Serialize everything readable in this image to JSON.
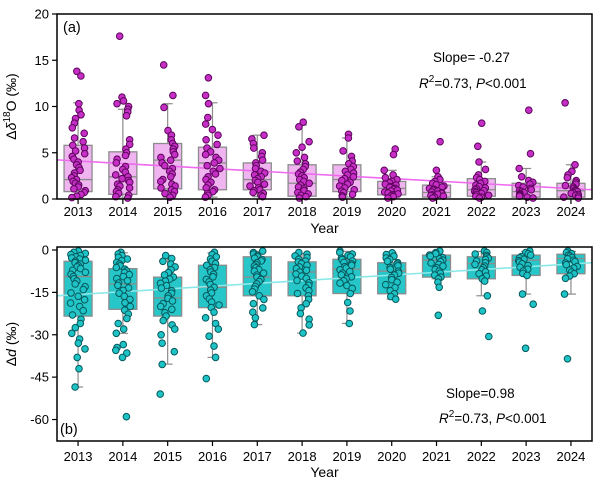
{
  "figure": {
    "background": "#ffffff",
    "frame_color": "#000000"
  },
  "chart_data": [
    {
      "type": "boxplot-scatter",
      "panel_label": "(a)",
      "xlabel": "Year",
      "ylabel_text": "Δδ¹⁸O (‰)",
      "ylabel_parts": [
        [
          "Δ",
          "n"
        ],
        [
          "δ",
          "i"
        ],
        [
          "18",
          "sup"
        ],
        [
          "O (‰)",
          "n"
        ]
      ],
      "xlim": [
        2012.53,
        2024.47
      ],
      "ylim": [
        0,
        20
      ],
      "yticks": [
        [
          0,
          "0"
        ],
        [
          5,
          "5"
        ],
        [
          10,
          "10"
        ],
        [
          15,
          "15"
        ],
        [
          20,
          "20"
        ]
      ],
      "categories": [
        2013,
        2014,
        2015,
        2016,
        2017,
        2018,
        2019,
        2020,
        2021,
        2022,
        2023,
        2024
      ],
      "boxes": [
        {
          "q1": 0.8,
          "median": 2.1,
          "q3": 5.8,
          "wlo": 0.15,
          "whi": 10.4
        },
        {
          "q1": 0.5,
          "median": 2.4,
          "q3": 5.1,
          "wlo": 0.1,
          "whi": 9.7
        },
        {
          "q1": 1.1,
          "median": 4.2,
          "q3": 6.0,
          "wlo": 0.2,
          "whi": 10.3
        },
        {
          "q1": 1.0,
          "median": 3.9,
          "q3": 5.6,
          "wlo": 0.2,
          "whi": 10.4
        },
        {
          "q1": 1.0,
          "median": 2.1,
          "q3": 3.9,
          "wlo": 0.25,
          "whi": 6.9
        },
        {
          "q1": 0.3,
          "median": 1.7,
          "q3": 3.7,
          "wlo": 0.1,
          "whi": 8.0
        },
        {
          "q1": 0.8,
          "median": 2.1,
          "q3": 3.7,
          "wlo": 0.2,
          "whi": 6.6
        },
        {
          "q1": 0.45,
          "median": 1.15,
          "q3": 1.9,
          "wlo": 0.1,
          "whi": 3.1
        },
        {
          "q1": 0.2,
          "median": 0.7,
          "q3": 1.5,
          "wlo": 0.1,
          "whi": 2.4
        },
        {
          "q1": 0.3,
          "median": 1.0,
          "q3": 2.2,
          "wlo": 0.1,
          "whi": 4.0
        },
        {
          "q1": 0.2,
          "median": 0.8,
          "q3": 1.7,
          "wlo": 0.1,
          "whi": 3.3
        },
        {
          "q1": 0.2,
          "median": 0.9,
          "q3": 1.7,
          "wlo": 0.1,
          "whi": 3.7
        }
      ],
      "points": [
        [
          13.8,
          13.3,
          10.3,
          9.6,
          9.1,
          8.7,
          8.2,
          7.7,
          7.1,
          6.6,
          6.2,
          5.8,
          5.5,
          5.2,
          4.9,
          4.6,
          4.3,
          4.0,
          3.7,
          3.4,
          3.1,
          2.8,
          2.5,
          2.3,
          2.1,
          1.9,
          1.7,
          1.5,
          1.3,
          1.1,
          0.9,
          0.7,
          0.5,
          0.3,
          0.15
        ],
        [
          17.6,
          11.0,
          10.6,
          10.3,
          10.0,
          9.7,
          9.4,
          9.0,
          6.4,
          5.9,
          5.4,
          5.0,
          4.7,
          4.3,
          3.9,
          3.5,
          3.2,
          2.9,
          2.6,
          2.4,
          2.2,
          2.0,
          1.8,
          1.6,
          1.4,
          1.2,
          1.0,
          0.8,
          0.6,
          0.4,
          0.25,
          0.1
        ],
        [
          14.5,
          11.2,
          9.9,
          7.4,
          6.9,
          6.4,
          6.0,
          5.7,
          5.4,
          5.1,
          4.8,
          4.5,
          4.2,
          3.9,
          3.6,
          3.3,
          3.0,
          2.7,
          2.4,
          2.1,
          1.9,
          1.6,
          1.4,
          1.2,
          1.0,
          0.8,
          0.6,
          0.4,
          0.2
        ],
        [
          13.1,
          11.2,
          10.3,
          8.8,
          8.1,
          7.5,
          6.9,
          6.4,
          5.9,
          5.5,
          5.1,
          4.8,
          4.5,
          4.2,
          3.9,
          3.6,
          3.3,
          3.0,
          2.7,
          2.4,
          2.1,
          1.8,
          1.5,
          1.2,
          1.0,
          0.8,
          0.6,
          0.4,
          0.2
        ],
        [
          6.9,
          6.5,
          6.0,
          5.5,
          5.0,
          4.6,
          4.2,
          3.9,
          3.6,
          3.3,
          3.0,
          2.8,
          2.6,
          2.4,
          2.2,
          2.0,
          1.8,
          1.6,
          1.4,
          1.2,
          1.0,
          0.9,
          0.7,
          0.6,
          0.4,
          0.25
        ],
        [
          8.3,
          7.8,
          6.2,
          5.6,
          5.0,
          4.5,
          4.1,
          3.8,
          3.5,
          3.2,
          2.9,
          2.7,
          2.5,
          2.3,
          2.1,
          1.9,
          1.7,
          1.5,
          1.3,
          1.1,
          0.9,
          0.7,
          0.55,
          0.4,
          0.25,
          0.1
        ],
        [
          7.0,
          6.6,
          5.2,
          4.6,
          4.1,
          3.8,
          3.5,
          3.2,
          3.0,
          2.8,
          2.6,
          2.4,
          2.2,
          2.0,
          1.8,
          1.6,
          1.4,
          1.2,
          1.0,
          0.85,
          0.7,
          0.5,
          0.35,
          0.2
        ],
        [
          5.4,
          4.8,
          3.1,
          2.6,
          2.3,
          2.1,
          1.9,
          1.75,
          1.6,
          1.5,
          1.35,
          1.25,
          1.15,
          1.05,
          0.95,
          0.85,
          0.75,
          0.65,
          0.55,
          0.45,
          0.35,
          0.25,
          0.1
        ],
        [
          6.2,
          3.1,
          2.4,
          2.1,
          1.9,
          1.7,
          1.55,
          1.4,
          1.3,
          1.15,
          1.05,
          0.95,
          0.85,
          0.75,
          0.68,
          0.6,
          0.52,
          0.45,
          0.38,
          0.3,
          0.2,
          0.1
        ],
        [
          8.2,
          5.7,
          4.0,
          3.2,
          2.6,
          2.3,
          2.1,
          1.9,
          1.7,
          1.5,
          1.35,
          1.2,
          1.1,
          1.0,
          0.9,
          0.8,
          0.7,
          0.6,
          0.5,
          0.4,
          0.3,
          0.2,
          0.1
        ],
        [
          9.6,
          4.9,
          3.3,
          2.4,
          2.0,
          1.8,
          1.6,
          1.45,
          1.3,
          1.15,
          1.0,
          0.9,
          0.8,
          0.7,
          0.6,
          0.5,
          0.4,
          0.3,
          0.2,
          0.1
        ],
        [
          10.4,
          3.7,
          3.0,
          2.6,
          2.3,
          2.0,
          1.8,
          1.6,
          1.45,
          1.3,
          1.15,
          1.0,
          0.9,
          0.8,
          0.7,
          0.6,
          0.5,
          0.4,
          0.3,
          0.2,
          0.1
        ]
      ],
      "trend": {
        "slope": -0.27,
        "edge_values": [
          4.23,
          1.0
        ]
      },
      "annotation": {
        "line1": "Slope= -0.27",
        "line2_text": "R²=0.73, P<0.001",
        "line2_parts": [
          [
            "R",
            "i"
          ],
          [
            "2",
            "sup"
          ],
          [
            "=0.73, ",
            "n"
          ],
          [
            "P",
            "i"
          ],
          [
            "<0.001",
            "n"
          ]
        ]
      },
      "colors": {
        "point_fill": "#c62fc6",
        "point_stroke": "#5c055c",
        "box_fill": "#f0b4f0",
        "box_stroke": "#8c8c8c",
        "trend": "#ee6aee"
      }
    },
    {
      "type": "boxplot-scatter",
      "panel_label": "(b)",
      "xlabel": "Year",
      "ylabel_text": "Δd (‰)",
      "ylabel_parts": [
        [
          "Δ",
          "n"
        ],
        [
          "d",
          "i"
        ],
        [
          " (‰)",
          "n"
        ]
      ],
      "xlim": [
        2012.53,
        2024.47
      ],
      "ylim": [
        -67.6,
        1.06
      ],
      "yticks": [
        [
          0,
          "0"
        ],
        [
          -15,
          "-15"
        ],
        [
          -30,
          "-30"
        ],
        [
          -45,
          "-45"
        ],
        [
          -60,
          "-60"
        ]
      ],
      "categories": [
        2013,
        2014,
        2015,
        2016,
        2017,
        2018,
        2019,
        2020,
        2021,
        2022,
        2023,
        2024
      ],
      "boxes": [
        {
          "q1": -23.4,
          "median": -9.4,
          "q3": -4.0,
          "wlo": -48.5,
          "whi": -0.5
        },
        {
          "q1": -21.0,
          "median": -12.0,
          "q3": -6.6,
          "wlo": -29.5,
          "whi": -1.0
        },
        {
          "q1": -23.4,
          "median": -17.0,
          "q3": -9.6,
          "wlo": -40.4,
          "whi": -2.0
        },
        {
          "q1": -20.4,
          "median": -13.2,
          "q3": -5.4,
          "wlo": -38.0,
          "whi": -1.0
        },
        {
          "q1": -16.2,
          "median": -9.6,
          "q3": -2.4,
          "wlo": -26.4,
          "whi": -0.5
        },
        {
          "q1": -16.2,
          "median": -7.8,
          "q3": -4.2,
          "wlo": -29.4,
          "whi": -1.2
        },
        {
          "q1": -15.4,
          "median": -6.8,
          "q3": -3.3,
          "wlo": -26.0,
          "whi": -0.5
        },
        {
          "q1": -15.5,
          "median": -7.5,
          "q3": -4.5,
          "wlo": -17.4,
          "whi": -1.0
        },
        {
          "q1": -9.6,
          "median": -3.6,
          "q3": -1.8,
          "wlo": -10.2,
          "whi": -0.5
        },
        {
          "q1": -10.2,
          "median": -4.8,
          "q3": -2.4,
          "wlo": -16.2,
          "whi": -0.5
        },
        {
          "q1": -9.0,
          "median": -3.6,
          "q3": -1.8,
          "wlo": -15.6,
          "whi": -0.5
        },
        {
          "q1": -8.4,
          "median": -3.0,
          "q3": -1.5,
          "wlo": -15.6,
          "whi": -0.5
        }
      ],
      "points": [
        [
          -0.4,
          -0.8,
          -1.2,
          -1.6,
          -2.0,
          -2.4,
          -2.8,
          -3.2,
          -3.6,
          -4.0,
          -4.5,
          -5.0,
          -5.5,
          -6.0,
          -6.6,
          -7.2,
          -7.9,
          -8.6,
          -9.4,
          -10.2,
          -11.0,
          -12.0,
          -13.0,
          -14.0,
          -15.2,
          -16.4,
          -17.6,
          -18.8,
          -20.0,
          -21.5,
          -23.0,
          -24.5,
          -26.0,
          -27.5,
          -29.5,
          -31.5,
          -33.0,
          -35.0,
          -38.0,
          -42.0,
          -48.5
        ],
        [
          -0.8,
          -1.4,
          -2.0,
          -2.6,
          -3.2,
          -3.8,
          -4.4,
          -5.0,
          -5.6,
          -6.2,
          -6.8,
          -7.4,
          -8.0,
          -8.7,
          -9.4,
          -10.1,
          -10.9,
          -11.7,
          -12.5,
          -13.4,
          -14.3,
          -15.3,
          -16.4,
          -17.5,
          -18.7,
          -20.0,
          -21.3,
          -22.7,
          -24.2,
          -26.0,
          -28.0,
          -29.5,
          -33.5,
          -34.5,
          -35.5,
          -36.5,
          -38.0,
          -59.0
        ],
        [
          -2.0,
          -3.0,
          -4.0,
          -5.0,
          -6.0,
          -7.0,
          -8.0,
          -8.8,
          -9.6,
          -10.3,
          -11.0,
          -11.8,
          -12.6,
          -13.5,
          -14.4,
          -15.3,
          -16.2,
          -17.1,
          -18.0,
          -19.0,
          -20.0,
          -21.0,
          -22.2,
          -23.4,
          -25.0,
          -26.5,
          -28.0,
          -30.0,
          -33.0,
          -36.0,
          -40.5,
          -51.0
        ],
        [
          -0.8,
          -1.6,
          -2.4,
          -3.2,
          -4.0,
          -4.8,
          -5.4,
          -6.2,
          -7.0,
          -7.8,
          -8.6,
          -9.5,
          -10.4,
          -11.3,
          -12.2,
          -13.2,
          -14.2,
          -15.2,
          -16.2,
          -17.3,
          -18.4,
          -19.5,
          -20.4,
          -22.0,
          -24.0,
          -26.0,
          -28.0,
          -30.5,
          -34.0,
          -38.0,
          -45.5
        ],
        [
          -0.4,
          -0.9,
          -1.4,
          -1.9,
          -2.4,
          -2.9,
          -3.4,
          -3.9,
          -4.5,
          -5.1,
          -5.7,
          -6.3,
          -6.9,
          -7.5,
          -8.2,
          -8.9,
          -9.6,
          -10.4,
          -11.2,
          -12.0,
          -12.9,
          -13.8,
          -14.8,
          -16.2,
          -17.5,
          -19.0,
          -20.5,
          -22.0,
          -24.0,
          -26.4
        ],
        [
          -0.9,
          -1.5,
          -2.1,
          -2.7,
          -3.3,
          -3.9,
          -4.2,
          -4.8,
          -5.4,
          -6.0,
          -6.6,
          -7.2,
          -7.8,
          -8.5,
          -9.2,
          -10.0,
          -10.8,
          -11.6,
          -12.5,
          -13.4,
          -14.4,
          -15.4,
          -16.2,
          -17.5,
          -19.0,
          -20.5,
          -22.5,
          -24.5,
          -26.5,
          -29.4
        ],
        [
          -0.4,
          -0.9,
          -1.4,
          -1.9,
          -2.4,
          -2.9,
          -3.4,
          -3.9,
          -4.4,
          -4.9,
          -5.4,
          -5.9,
          -6.4,
          -7.0,
          -7.6,
          -8.2,
          -8.8,
          -9.5,
          -10.2,
          -10.9,
          -11.7,
          -12.6,
          -13.6,
          -15.4,
          -18.6,
          -21.6,
          -26.0
        ],
        [
          -1.0,
          -1.6,
          -2.2,
          -2.8,
          -3.4,
          -4.0,
          -4.5,
          -5.0,
          -5.6,
          -6.2,
          -6.8,
          -7.5,
          -8.2,
          -8.9,
          -9.7,
          -10.5,
          -11.4,
          -12.3,
          -13.3,
          -14.4,
          -15.5,
          -16.5,
          -17.4
        ],
        [
          -0.4,
          -0.9,
          -1.3,
          -1.8,
          -2.2,
          -2.7,
          -3.1,
          -3.6,
          -4.1,
          -4.6,
          -5.1,
          -5.7,
          -6.3,
          -6.9,
          -7.5,
          -8.2,
          -8.9,
          -9.6,
          -10.2,
          -11.4,
          -13.2,
          -23.1
        ],
        [
          -0.4,
          -0.9,
          -1.4,
          -1.9,
          -2.4,
          -2.9,
          -3.4,
          -3.9,
          -4.5,
          -5.1,
          -5.7,
          -6.3,
          -7.0,
          -7.7,
          -8.4,
          -9.2,
          -10.2,
          -11.0,
          -16.2,
          -21.6,
          -30.6
        ],
        [
          -0.4,
          -0.9,
          -1.3,
          -1.8,
          -2.3,
          -2.8,
          -3.3,
          -3.8,
          -4.3,
          -4.9,
          -5.5,
          -6.1,
          -6.8,
          -7.5,
          -8.3,
          -9.0,
          -15.6,
          -19.2,
          -34.8
        ],
        [
          -0.4,
          -0.9,
          -1.3,
          -1.8,
          -2.2,
          -2.7,
          -3.1,
          -3.6,
          -4.1,
          -4.6,
          -5.2,
          -5.8,
          -6.4,
          -7.1,
          -7.8,
          -8.4,
          -9.2,
          -10.0,
          -15.6,
          -38.5
        ]
      ],
      "trend": {
        "slope": 0.98,
        "edge_values": [
          -16.2,
          -4.5
        ]
      },
      "annotation": {
        "line1": "Slope=0.98",
        "line2_text": "R²=0.73, P<0.001",
        "line2_parts": [
          [
            "R",
            "i"
          ],
          [
            "2",
            "sup"
          ],
          [
            "=0.73, ",
            "n"
          ],
          [
            "P",
            "i"
          ],
          [
            "<0.001",
            "n"
          ]
        ]
      },
      "colors": {
        "point_fill": "#1ec3c6",
        "point_stroke": "#06585c",
        "box_fill": "#27c6c8",
        "box_stroke": "#8c8c8c",
        "trend": "#8ce8e8"
      }
    }
  ]
}
